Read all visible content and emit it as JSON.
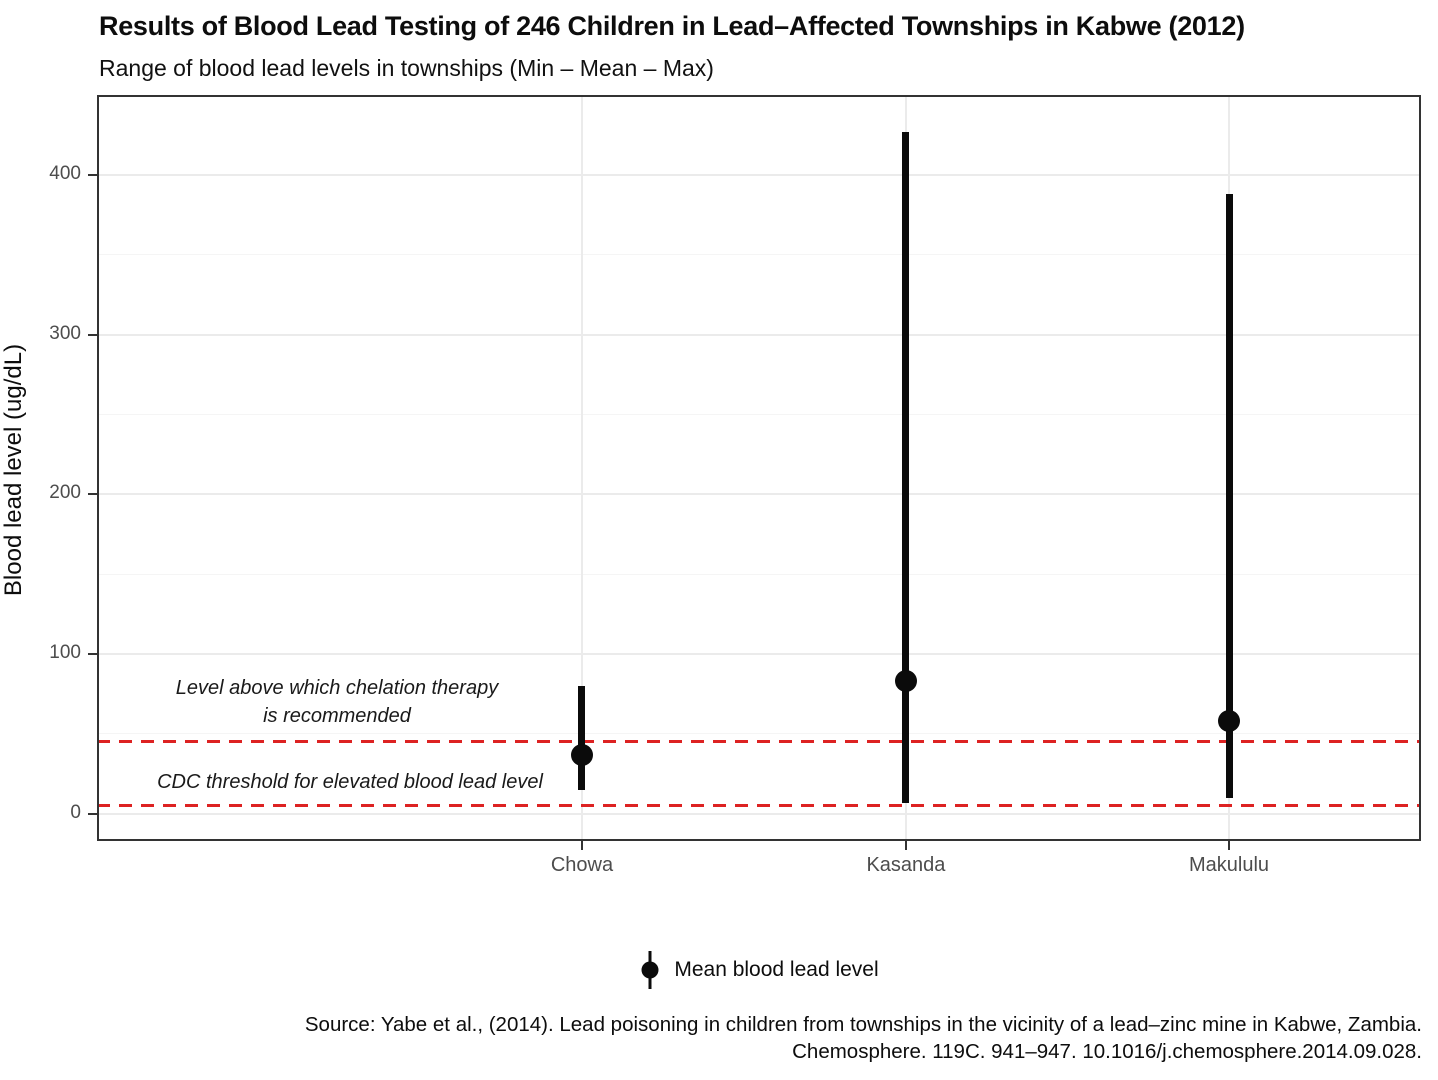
{
  "figure": {
    "title": "Results of Blood Lead Testing of 246 Children in Lead–Affected Townships in Kabwe (2012)",
    "subtitle": "Range of blood lead levels in townships (Min – Mean – Max)",
    "source_line1": "Source: Yabe et al., (2014). Lead poisoning in children from townships in the vicinity of a lead–zinc mine in Kabwe, Zambia.",
    "source_line2": "Chemosphere. 119C. 941–947. 10.1016/j.chemosphere.2014.09.028."
  },
  "legend": {
    "label": "Mean blood lead level"
  },
  "colors": {
    "threshold_red": "#dd2222",
    "point_black": "#0b0b0b",
    "axis_text_gray": "#4d4d4d",
    "panel_border": "#333333",
    "gridline_major": "#ebebeb",
    "gridline_minor": "#f5f5f5"
  },
  "chart_data": {
    "type": "pointrange",
    "title": "Results of Blood Lead Testing of 246 Children in Lead–Affected Townships in Kabwe (2012)",
    "subtitle": "Range of blood lead levels in townships (Min – Mean – Max)",
    "xlabel": "",
    "ylabel": "Blood lead level (ug/dL)",
    "categories": [
      "Chowa",
      "Kasanda",
      "Makululu"
    ],
    "series": [
      {
        "name": "min",
        "values": [
          15,
          7,
          10
        ]
      },
      {
        "name": "mean",
        "values": [
          37,
          83,
          58
        ]
      },
      {
        "name": "max",
        "values": [
          80,
          427,
          388
        ]
      }
    ],
    "ylim": [
      -17,
      450
    ],
    "yticks": [
      0,
      100,
      200,
      300,
      400
    ],
    "minor_gridlines": [
      50,
      150,
      250,
      350
    ],
    "grid": "on",
    "legend_position": "bottom",
    "legend_label": "Mean blood lead level",
    "thresholds": [
      {
        "value": 45,
        "label_line1": "Level above which chelation therapy",
        "label_line2": "is recommended",
        "color": "#dd2222",
        "style": "dashed"
      },
      {
        "value": 5,
        "label": "CDC threshold for elevated blood lead level",
        "color": "#dd2222",
        "style": "dashed"
      }
    ]
  }
}
